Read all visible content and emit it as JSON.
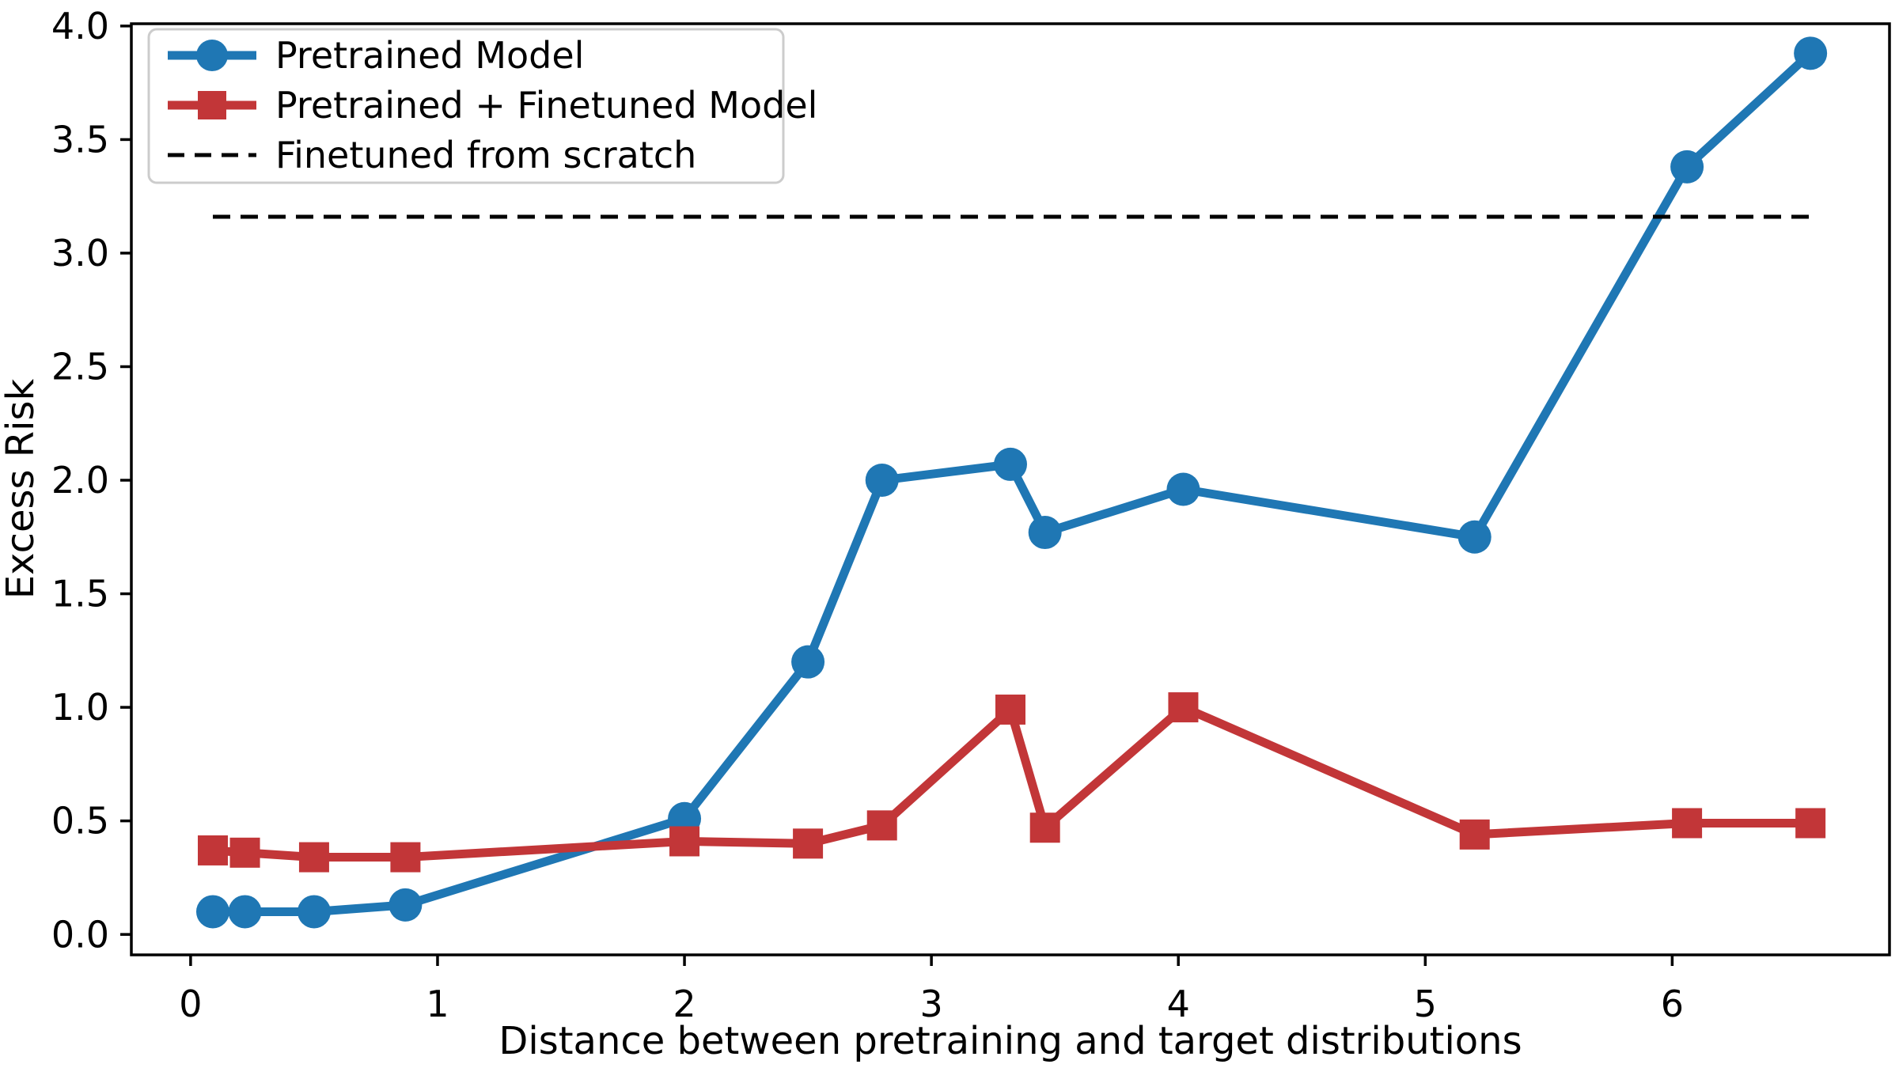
{
  "figure": {
    "background": "#ffffff",
    "spine_color": "#000000",
    "text_color": "#000000"
  },
  "chart_data": {
    "type": "line",
    "title": "",
    "xlabel": "Distance between pretraining and target distributions",
    "ylabel": "Excess Risk",
    "xlim": [
      -0.24,
      6.88
    ],
    "ylim": [
      -0.09,
      4.01
    ],
    "x_ticks": [
      0,
      1,
      2,
      3,
      4,
      5,
      6
    ],
    "y_ticks": [
      0.0,
      0.5,
      1.0,
      1.5,
      2.0,
      2.5,
      3.0,
      3.5,
      4.0
    ],
    "grid": false,
    "legend_position": "upper-left",
    "x": [
      0.09,
      0.22,
      0.5,
      0.87,
      2.0,
      2.5,
      2.8,
      3.32,
      3.46,
      4.02,
      5.2,
      6.06,
      6.56
    ],
    "series": [
      {
        "name": "Pretrained Model",
        "color": "#1f77b4",
        "marker": "circle",
        "line_style": "solid",
        "values": [
          0.1,
          0.1,
          0.1,
          0.13,
          0.51,
          1.2,
          2.0,
          2.07,
          1.77,
          1.96,
          1.75,
          3.38,
          3.88
        ]
      },
      {
        "name": "Pretrained + Finetuned Model",
        "color": "#c23638",
        "marker": "square",
        "line_style": "solid",
        "values": [
          0.37,
          0.36,
          0.34,
          0.34,
          0.41,
          0.4,
          0.48,
          0.99,
          0.47,
          1.0,
          0.44,
          0.49,
          0.49
        ]
      },
      {
        "name": "Finetuned from scratch",
        "color": "#000000",
        "marker": "none",
        "line_style": "dashed",
        "constant_value": 3.16
      }
    ]
  }
}
